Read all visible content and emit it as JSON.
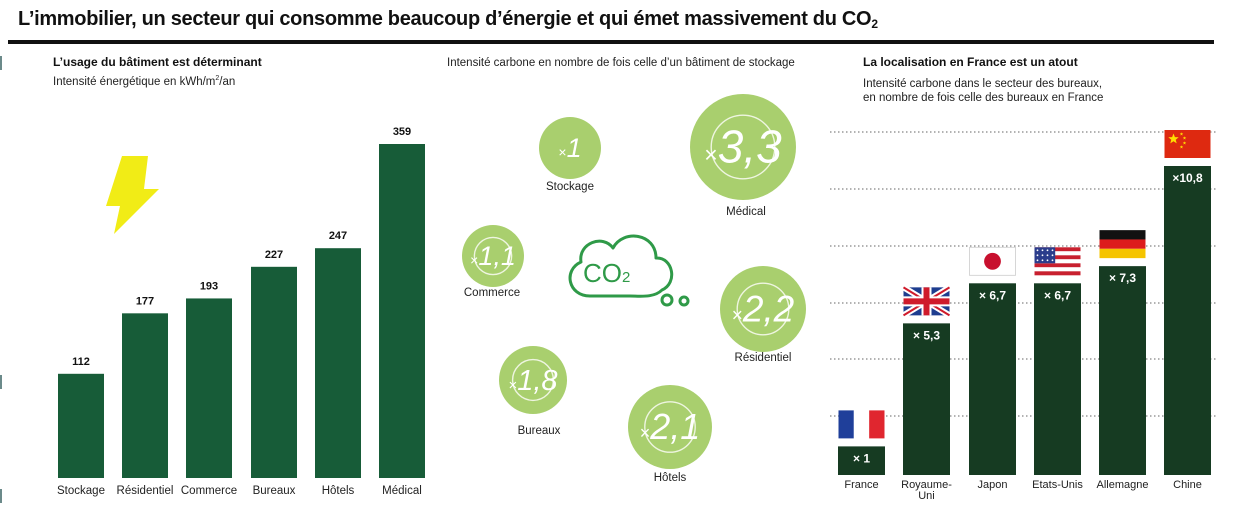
{
  "title": {
    "text": "L’immobilier, un secteur qui consomme beaucoup d’énergie et qui émet massivement du CO",
    "subscript": "2"
  },
  "colors": {
    "dark_green": "#175c38",
    "darker_green": "#163b22",
    "light_green": "#a9cf6e",
    "ring": "#eef5e0",
    "co2_cloud": "#2f9a48",
    "bolt": "#f1ec16",
    "rule": "#111111"
  },
  "panel1": {
    "title": "L’usage du bâtiment est déterminant",
    "subtitle_pre": "Intensité énergétique en kWh/m",
    "subtitle_sup": "2",
    "subtitle_post": "/an",
    "icon": "lightning-bolt-icon"
  },
  "panel2": {
    "subtitle": "Intensité carbone en nombre de fois celle d’un bâtiment de stockage",
    "icon": "co2-cloud-icon",
    "co2_label": "CO",
    "co2_sub": "2"
  },
  "panel3": {
    "title": "La localisation en France est un atout",
    "subtitle_lines": [
      "Intensité carbone dans le secteur des bureaux,",
      "en nombre de fois celle des bureaux en France"
    ]
  },
  "chart_data": [
    {
      "type": "bar",
      "categories": [
        "Stockage",
        "Résidentiel",
        "Commerce",
        "Bureaux",
        "Hôtels",
        "Médical"
      ],
      "values": [
        112,
        177,
        193,
        227,
        247,
        359
      ],
      "title": "L’usage du bâtiment est déterminant",
      "subtitle": "Intensité énergétique en kWh/m²/an",
      "ylim": [
        0,
        359
      ],
      "grid": false
    },
    {
      "type": "bubble",
      "subtitle": "Intensité carbone en nombre de fois celle d’un bâtiment de stockage",
      "items": [
        {
          "label": "Stockage",
          "value": 1,
          "prefix": "×",
          "text": "1"
        },
        {
          "label": "Commerce",
          "value": 1.1,
          "prefix": "×",
          "text": "1,1"
        },
        {
          "label": "Bureaux",
          "value": 1.8,
          "prefix": "×",
          "text": "1,8"
        },
        {
          "label": "Hôtels",
          "value": 2.1,
          "prefix": "×",
          "text": "2,1"
        },
        {
          "label": "Résidentiel",
          "value": 2.2,
          "prefix": "×",
          "text": "2,2"
        },
        {
          "label": "Médical",
          "value": 3.3,
          "prefix": "×",
          "text": "3,3"
        }
      ]
    },
    {
      "type": "bar",
      "title": "La localisation en France est un atout",
      "subtitle": "Intensité carbone dans le secteur des bureaux, en nombre de fois celle des bureaux en France",
      "categories": [
        [
          "France"
        ],
        [
          "Royaume-",
          "Uni"
        ],
        [
          "Japon"
        ],
        [
          "Etats-Unis"
        ],
        [
          "Allemagne"
        ],
        [
          "Chine"
        ]
      ],
      "values": [
        1,
        5.3,
        6.7,
        6.7,
        7.3,
        10.8
      ],
      "value_labels": [
        "× 1",
        "× 5,3",
        "× 6,7",
        "× 6,7",
        "× 7,3",
        "×10,8"
      ],
      "flags": [
        "france-flag-icon",
        "uk-flag-icon",
        "japan-flag-icon",
        "usa-flag-icon",
        "germany-flag-icon",
        "china-flag-icon"
      ],
      "ylim": [
        0,
        12
      ],
      "grid": true
    }
  ]
}
